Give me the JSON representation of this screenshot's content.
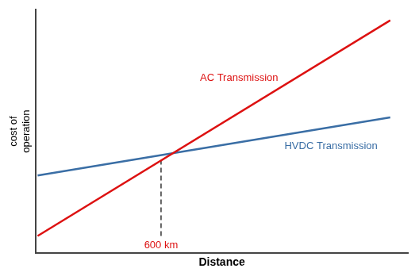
{
  "chart_data": {
    "type": "line",
    "xlabel": "Distance",
    "ylabel": "cost of\noperation",
    "series": [
      {
        "name": "AC Transmission",
        "color": "#dd1111",
        "x": [
          0,
          10
        ],
        "values": [
          0,
          10
        ]
      },
      {
        "name": "HVDC Transmission",
        "color": "#3a6ea5",
        "x": [
          0,
          10
        ],
        "values": [
          2.8,
          5.5
        ]
      },
      {
        "color": "#333333",
        "line_style": "dashed",
        "x": [
          3.5,
          3.5
        ],
        "values": [
          0,
          3.5
        ]
      }
    ],
    "annotations": [
      {
        "text": "600 km",
        "x": 3.5,
        "color": "#dd1111"
      }
    ],
    "xlim": [
      -0.05,
      10.5
    ],
    "ylim": [
      -0.8,
      10.5
    ],
    "xticks": [],
    "yticks": [],
    "tick_labels": false,
    "grid": false,
    "legend": false
  }
}
